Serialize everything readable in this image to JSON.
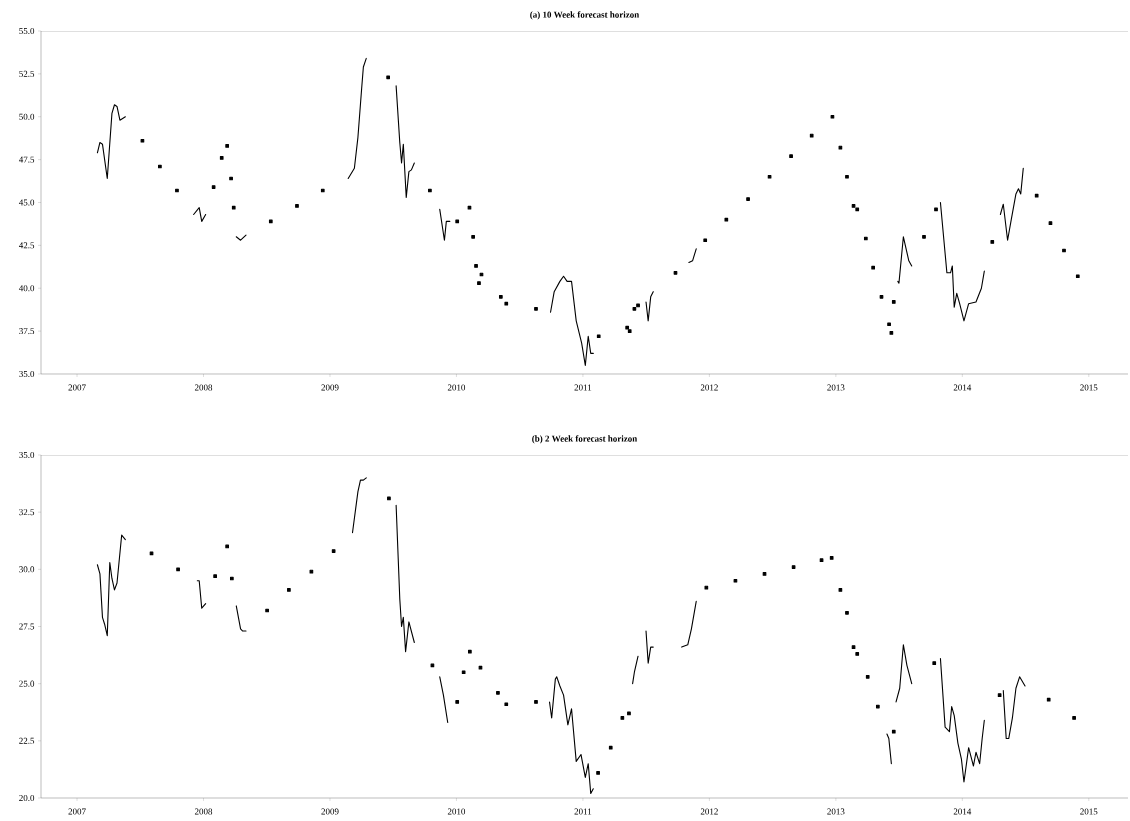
{
  "chart_data": [
    {
      "type": "line",
      "title": "(a) 10 Week forecast horizon",
      "xlim": [
        2006.715,
        2015.31
      ],
      "ylim": [
        35,
        55
      ],
      "xticks": [
        2007,
        2008,
        2009,
        2010,
        2011,
        2012,
        2013,
        2014,
        2015
      ],
      "yticks": [
        {
          "value": 35,
          "label": "35.0"
        },
        {
          "value": 37.5,
          "label": "37.5"
        },
        {
          "value": 40,
          "label": "40.0"
        },
        {
          "value": 42.5,
          "label": "42.5"
        },
        {
          "value": 45,
          "label": "45.0"
        },
        {
          "value": 47.5,
          "label": "47.5"
        },
        {
          "value": 50,
          "label": "50.0"
        },
        {
          "value": 52.5,
          "label": "52.5"
        },
        {
          "value": 55,
          "label": "55.0"
        }
      ],
      "series": [
        {
          "color": "#000000",
          "x": [
            2007.161,
            2007.181,
            2007.201,
            2007.239,
            2007.276,
            2007.296,
            2007.316,
            2007.339,
            2007.382
          ],
          "values": [
            47.9,
            48.5,
            48.4,
            46.4,
            50.2,
            50.7,
            50.6,
            49.8,
            50.0
          ]
        },
        {
          "color": "#000000",
          "x": [
            2007.922,
            2007.966,
            2007.986,
            2008.017
          ],
          "values": [
            44.3,
            44.7,
            43.9,
            44.3
          ]
        },
        {
          "color": "#000000",
          "x": [
            2008.259,
            2008.293,
            2008.336
          ],
          "values": [
            43.0,
            42.8,
            43.1
          ]
        },
        {
          "color": "#000000",
          "x": [
            2009.144,
            2009.193,
            2009.221,
            2009.25,
            2009.264,
            2009.287
          ],
          "values": [
            46.4,
            47.0,
            48.8,
            51.6,
            52.9,
            53.4
          ]
        },
        {
          "color": "#000000",
          "x": [
            2009.523,
            2009.552,
            2009.566,
            2009.58,
            2009.603,
            2009.624,
            2009.644,
            2009.667
          ],
          "values": [
            51.8,
            48.5,
            47.3,
            48.4,
            45.3,
            46.8,
            46.9,
            47.3
          ]
        },
        {
          "color": "#000000",
          "x": [
            2009.868,
            2009.905,
            2009.92,
            2009.948
          ],
          "values": [
            44.6,
            42.8,
            43.9,
            43.9
          ]
        },
        {
          "color": "#000000",
          "x": [
            2010.744,
            2010.773,
            2010.818,
            2010.847,
            2010.875,
            2010.91,
            2010.947,
            2010.99,
            2011.019,
            2011.042,
            2011.062,
            2011.082
          ],
          "values": [
            38.6,
            39.8,
            40.4,
            40.7,
            40.4,
            40.4,
            38.1,
            36.8,
            35.5,
            37.2,
            36.2,
            36.2
          ]
        },
        {
          "color": "#000000",
          "x": [
            2011.499,
            2011.516,
            2011.536,
            2011.556
          ],
          "values": [
            39.2,
            38.1,
            39.5,
            39.8
          ]
        },
        {
          "color": "#000000",
          "x": [
            2011.838,
            2011.867,
            2011.896
          ],
          "values": [
            41.5,
            41.6,
            42.3
          ]
        },
        {
          "color": "#000000",
          "x": [
            2013.49,
            2013.499,
            2013.534,
            2013.577,
            2013.6
          ],
          "values": [
            40.4,
            40.3,
            43.0,
            41.6,
            41.3
          ]
        },
        {
          "color": "#000000",
          "x": [
            2013.827,
            2013.878,
            2013.907,
            2013.921,
            2013.936,
            2013.956,
            2013.979,
            2014.013,
            2014.05,
            2014.108,
            2014.151,
            2014.174
          ],
          "values": [
            45.0,
            40.9,
            40.9,
            41.3,
            38.9,
            39.7,
            39.1,
            38.1,
            39.1,
            39.2,
            40.0,
            41.0
          ]
        },
        {
          "color": "#000000",
          "x": [
            2014.301,
            2014.324,
            2014.358,
            2014.387,
            2014.424,
            2014.444,
            2014.462,
            2014.482
          ],
          "values": [
            44.3,
            44.9,
            42.8,
            44.0,
            45.5,
            45.8,
            45.5,
            47.0
          ]
        },
        {
          "type": "scatter",
          "marker": "square",
          "color": "#000000",
          "x": [
            2007.517,
            2007.655,
            2007.79,
            2008.08,
            2008.144,
            2008.187,
            2008.218,
            2008.239,
            2008.532,
            2008.739,
            2008.943,
            2009.46,
            2009.79,
            2010.006,
            2010.103,
            2010.132,
            2010.155,
            2010.178,
            2010.198,
            2010.351,
            2010.394,
            2010.629,
            2011.125,
            2011.35,
            2011.37,
            2011.407,
            2011.436,
            2011.732,
            2011.967,
            2012.134,
            2012.306,
            2012.476,
            2012.646,
            2012.809,
            2012.973,
            2013.036,
            2013.088,
            2013.14,
            2013.169,
            2013.237,
            2013.295,
            2013.361,
            2013.421,
            2013.439,
            2013.458,
            2013.697,
            2013.792,
            2014.237,
            2014.588,
            2014.697,
            2014.804,
            2014.913
          ],
          "values": [
            48.6,
            47.1,
            45.7,
            45.9,
            47.6,
            48.3,
            46.4,
            44.7,
            43.9,
            44.8,
            45.7,
            52.3,
            45.7,
            43.9,
            44.7,
            43.0,
            41.3,
            40.3,
            40.8,
            39.5,
            39.1,
            38.8,
            37.2,
            37.7,
            37.5,
            38.8,
            39.0,
            40.9,
            42.8,
            44.0,
            45.2,
            46.5,
            47.7,
            48.9,
            50.0,
            48.2,
            46.5,
            44.8,
            44.6,
            42.9,
            41.2,
            39.5,
            37.9,
            37.4,
            39.2,
            43.0,
            44.6,
            42.7,
            45.4,
            43.8,
            42.2,
            40.7
          ]
        }
      ]
    },
    {
      "type": "line",
      "title": "(b) 2 Week forecast horizon",
      "xlim": [
        2006.715,
        2015.31
      ],
      "ylim": [
        20,
        35
      ],
      "xticks": [
        2007,
        2008,
        2009,
        2010,
        2011,
        2012,
        2013,
        2014,
        2015
      ],
      "yticks": [
        {
          "value": 20,
          "label": "20.0"
        },
        {
          "value": 22.5,
          "label": "22.5"
        },
        {
          "value": 25,
          "label": "25.0"
        },
        {
          "value": 27.5,
          "label": "27.5"
        },
        {
          "value": 30,
          "label": "30.0"
        },
        {
          "value": 32.5,
          "label": "32.5"
        },
        {
          "value": 35,
          "label": "35.0"
        }
      ],
      "series": [
        {
          "color": "#000000",
          "x": [
            2007.161,
            2007.181,
            2007.201,
            2007.218,
            2007.239,
            2007.259,
            2007.276,
            2007.296,
            2007.316,
            2007.353,
            2007.382
          ],
          "values": [
            30.2,
            29.8,
            27.9,
            27.6,
            27.1,
            30.3,
            29.6,
            29.1,
            29.4,
            31.5,
            31.3
          ]
        },
        {
          "color": "#000000",
          "x": [
            2007.951,
            2007.966,
            2007.986,
            2008.017
          ],
          "values": [
            29.5,
            29.5,
            28.3,
            28.5
          ]
        },
        {
          "color": "#000000",
          "x": [
            2008.259,
            2008.293,
            2008.31,
            2008.336
          ],
          "values": [
            28.4,
            27.4,
            27.3,
            27.3
          ]
        },
        {
          "color": "#000000",
          "x": [
            2009.178,
            2009.221,
            2009.241,
            2009.264,
            2009.287
          ],
          "values": [
            31.6,
            33.4,
            33.9,
            33.9,
            34.0
          ]
        },
        {
          "color": "#000000",
          "x": [
            2009.523,
            2009.552,
            2009.566,
            2009.58,
            2009.598,
            2009.624,
            2009.667
          ],
          "values": [
            32.8,
            28.7,
            27.5,
            27.9,
            26.4,
            27.7,
            26.8
          ]
        },
        {
          "color": "#000000",
          "x": [
            2009.868,
            2009.897,
            2009.931
          ],
          "values": [
            25.3,
            24.5,
            23.3
          ]
        },
        {
          "color": "#000000",
          "x": [
            2010.736,
            2010.753,
            2010.782,
            2010.793,
            2010.818,
            2010.847,
            2010.881,
            2010.91,
            2010.947,
            2010.985,
            2011.019,
            2011.042,
            2011.062,
            2011.082
          ],
          "values": [
            24.2,
            23.5,
            25.2,
            25.3,
            24.9,
            24.5,
            23.2,
            23.9,
            21.6,
            21.9,
            20.9,
            21.5,
            20.2,
            20.4
          ]
        },
        {
          "color": "#000000",
          "x": [
            2011.393,
            2011.407,
            2011.436
          ],
          "values": [
            25.0,
            25.5,
            26.2
          ]
        },
        {
          "color": "#000000",
          "x": [
            2011.499,
            2011.516,
            2011.536,
            2011.556
          ],
          "values": [
            27.3,
            25.9,
            26.6,
            26.6
          ]
        },
        {
          "color": "#000000",
          "x": [
            2011.781,
            2011.829,
            2011.858,
            2011.896
          ],
          "values": [
            26.6,
            26.7,
            27.4,
            28.6
          ]
        },
        {
          "color": "#000000",
          "x": [
            2013.404,
            2013.419,
            2013.439
          ],
          "values": [
            22.8,
            22.6,
            21.5
          ]
        },
        {
          "color": "#000000",
          "x": [
            2013.476,
            2013.505,
            2013.534,
            2013.562,
            2013.6
          ],
          "values": [
            24.2,
            24.8,
            26.7,
            25.8,
            25.0
          ]
        },
        {
          "color": "#000000",
          "x": [
            2013.827,
            2013.864,
            2013.898,
            2013.916,
            2013.936,
            2013.965,
            2013.993,
            2014.013,
            2014.05,
            2014.088,
            2014.108,
            2014.137,
            2014.157,
            2014.174
          ],
          "values": [
            26.1,
            23.1,
            22.9,
            24.0,
            23.6,
            22.4,
            21.7,
            20.7,
            22.2,
            21.4,
            22.0,
            21.5,
            22.6,
            23.4
          ]
        },
        {
          "color": "#000000",
          "x": [
            2014.324,
            2014.347,
            2014.367,
            2014.396,
            2014.424,
            2014.453,
            2014.496
          ],
          "values": [
            24.7,
            22.6,
            22.6,
            23.5,
            24.8,
            25.3,
            24.9
          ]
        },
        {
          "type": "scatter",
          "marker": "square",
          "color": "#000000",
          "x": [
            2007.589,
            2007.799,
            2008.092,
            2008.187,
            2008.224,
            2008.503,
            2008.675,
            2008.853,
            2009.029,
            2009.466,
            2009.81,
            2010.006,
            2010.057,
            2010.106,
            2010.19,
            2010.328,
            2010.394,
            2010.629,
            2011.12,
            2011.22,
            2011.312,
            2011.364,
            2011.976,
            2012.206,
            2012.436,
            2012.666,
            2012.887,
            2012.967,
            2013.036,
            2013.088,
            2013.14,
            2013.169,
            2013.252,
            2013.332,
            2013.458,
            2013.778,
            2014.295,
            2014.683,
            2014.884
          ],
          "values": [
            30.7,
            30.0,
            29.7,
            31.0,
            29.6,
            28.2,
            29.1,
            29.9,
            30.8,
            33.1,
            25.8,
            24.2,
            25.5,
            26.4,
            25.7,
            24.6,
            24.1,
            24.2,
            21.1,
            22.2,
            23.5,
            23.7,
            29.2,
            29.5,
            29.8,
            30.1,
            30.4,
            30.5,
            29.1,
            28.1,
            26.6,
            26.3,
            25.3,
            24.0,
            22.9,
            25.9,
            24.5,
            24.3,
            23.5
          ]
        }
      ]
    }
  ]
}
